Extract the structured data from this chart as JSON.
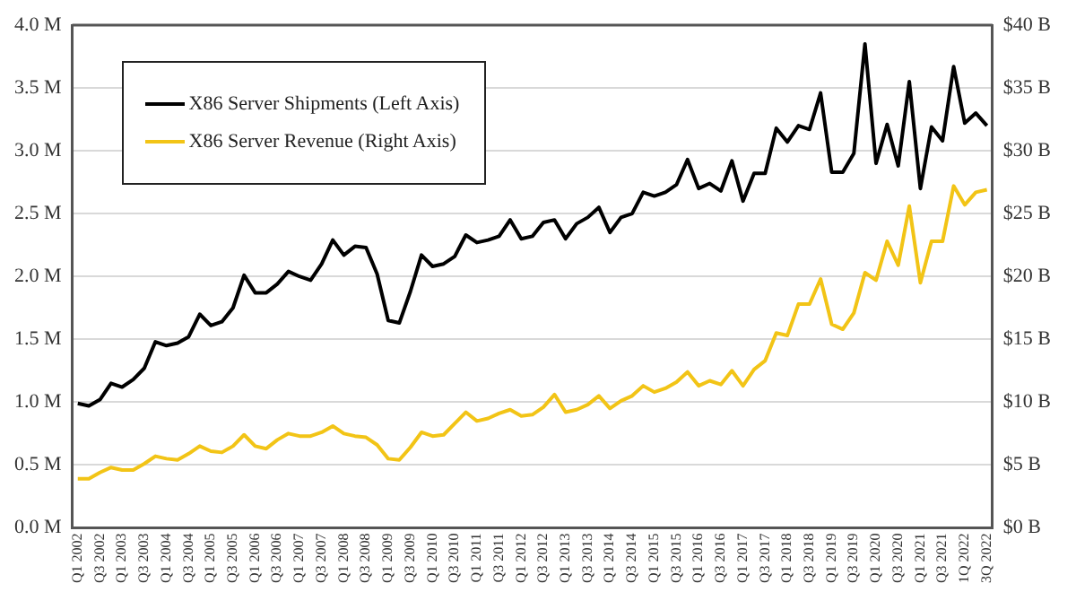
{
  "chart_data": {
    "type": "line",
    "categories": [
      "Q1 2002",
      null,
      "Q3 2002",
      null,
      "Q1 2003",
      null,
      "Q3 2003",
      null,
      "Q1 2004",
      null,
      "Q3 2004",
      null,
      "Q1 2005",
      null,
      "Q3 2005",
      null,
      "Q1 2006",
      null,
      "Q3 2006",
      null,
      "Q1 2007",
      null,
      "Q3 2007",
      null,
      "Q1 2008",
      null,
      "Q3 2008",
      null,
      "Q1 2009",
      null,
      "Q3 2009",
      null,
      "Q1 2010",
      null,
      "Q3 2010",
      null,
      "Q1 2011",
      null,
      "Q3 2011",
      null,
      "Q1 2012",
      null,
      "Q3 2012",
      null,
      "Q1 2013",
      null,
      "Q3 2013",
      null,
      "Q1 2014",
      null,
      "Q3 2014",
      null,
      "Q1 2015",
      null,
      "Q3 2015",
      null,
      "Q1 2016",
      null,
      "Q3 2016",
      null,
      "Q1 2017",
      null,
      "Q3 2017",
      null,
      "Q1 2018",
      null,
      "Q3 2018",
      null,
      "Q1 2019",
      null,
      "Q3 2019",
      null,
      "Q1 2020",
      null,
      "Q3 2020",
      null,
      "Q1 2021",
      null,
      "Q3 2021",
      null,
      "1Q 2022",
      null,
      "3Q 2022"
    ],
    "series": [
      {
        "name": "X86 Server Shipments (Left Axis)",
        "color": "#000000",
        "axis": "y",
        "values": [
          0.99,
          0.97,
          1.02,
          1.15,
          1.12,
          1.18,
          1.27,
          1.48,
          1.45,
          1.47,
          1.52,
          1.7,
          1.61,
          1.64,
          1.75,
          2.01,
          1.87,
          1.87,
          1.94,
          2.04,
          2.0,
          1.97,
          2.1,
          2.29,
          2.17,
          2.24,
          2.23,
          2.02,
          1.65,
          1.63,
          1.88,
          2.17,
          2.08,
          2.1,
          2.16,
          2.33,
          2.27,
          2.29,
          2.32,
          2.45,
          2.3,
          2.32,
          2.43,
          2.45,
          2.3,
          2.42,
          2.47,
          2.55,
          2.35,
          2.47,
          2.5,
          2.67,
          2.64,
          2.67,
          2.73,
          2.93,
          2.7,
          2.74,
          2.68,
          2.92,
          2.6,
          2.82,
          2.82,
          3.18,
          3.07,
          3.2,
          3.17,
          3.46,
          2.83,
          2.83,
          2.98,
          3.85,
          2.9,
          3.21,
          2.88,
          3.55,
          2.7,
          3.19,
          3.08,
          3.67,
          3.22,
          3.3,
          3.2
        ]
      },
      {
        "name": "X86 Server Revenue (Right Axis)",
        "color": "#f2c416",
        "axis": "y2",
        "values": [
          3.9,
          3.9,
          4.4,
          4.8,
          4.6,
          4.6,
          5.1,
          5.7,
          5.5,
          5.4,
          5.9,
          6.5,
          6.1,
          6.0,
          6.5,
          7.4,
          6.5,
          6.3,
          7.0,
          7.5,
          7.3,
          7.3,
          7.6,
          8.1,
          7.5,
          7.3,
          7.2,
          6.6,
          5.5,
          5.4,
          6.4,
          7.6,
          7.3,
          7.4,
          8.3,
          9.2,
          8.5,
          8.7,
          9.1,
          9.4,
          8.9,
          9.0,
          9.6,
          10.6,
          9.2,
          9.4,
          9.8,
          10.5,
          9.5,
          10.1,
          10.5,
          11.3,
          10.8,
          11.1,
          11.6,
          12.4,
          11.3,
          11.7,
          11.4,
          12.5,
          11.3,
          12.6,
          13.3,
          15.5,
          15.3,
          17.8,
          17.8,
          19.8,
          16.2,
          15.8,
          17.1,
          20.3,
          19.7,
          22.8,
          20.9,
          25.6,
          19.5,
          22.8,
          22.8,
          27.2,
          25.7,
          26.7,
          26.9
        ]
      }
    ],
    "ylim": [
      0,
      4
    ],
    "yticks": [
      {
        "value": 0,
        "label": "0.0 M"
      },
      {
        "value": 0.5,
        "label": "0.5 M"
      },
      {
        "value": 1,
        "label": "1.0 M"
      },
      {
        "value": 1.5,
        "label": "1.5 M"
      },
      {
        "value": 2,
        "label": "2.0 M"
      },
      {
        "value": 2.5,
        "label": "2.5 M"
      },
      {
        "value": 3,
        "label": "3.0 M"
      },
      {
        "value": 3.5,
        "label": "3.5 M"
      },
      {
        "value": 4,
        "label": "4.0 M"
      }
    ],
    "y2lim": [
      0,
      40
    ],
    "y2ticks": [
      {
        "value": 0,
        "label": "$0 B"
      },
      {
        "value": 5,
        "label": "$5 B"
      },
      {
        "value": 10,
        "label": "$10 B"
      },
      {
        "value": 15,
        "label": "$15 B"
      },
      {
        "value": 20,
        "label": "$20 B"
      },
      {
        "value": 25,
        "label": "$25 B"
      },
      {
        "value": 30,
        "label": "$30 B"
      },
      {
        "value": 35,
        "label": "$35 B"
      },
      {
        "value": 40,
        "label": "$40 B"
      }
    ],
    "grid": "y",
    "legend": "top left",
    "marker": "none",
    "line_style": "solid"
  }
}
